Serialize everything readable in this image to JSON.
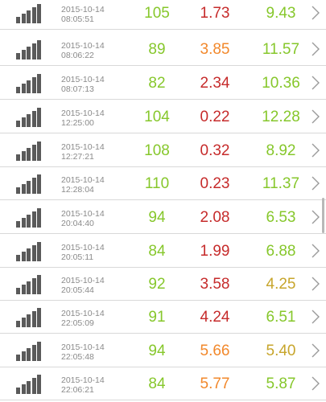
{
  "colors": {
    "green": "#86c72b",
    "red": "#c62b2b",
    "orange": "#f2882b",
    "olive": "#c7a52b",
    "icon": "#5a5a5a",
    "timestamp": "#8a8a8a",
    "divider": "#d9d9d9"
  },
  "icons": {
    "row_leading": "signal-bars-icon",
    "row_trailing": "chevron-right-icon"
  },
  "rows": [
    {
      "date": "2015-10-14",
      "time": "08:05:51",
      "v1": "105",
      "v2": "1.73",
      "v3": "9.43",
      "c1": "green",
      "c2": "red",
      "c3": "green"
    },
    {
      "date": "2015-10-14",
      "time": "08:06:22",
      "v1": "89",
      "v2": "3.85",
      "v3": "11.57",
      "c1": "green",
      "c2": "orange",
      "c3": "green"
    },
    {
      "date": "2015-10-14",
      "time": "08:07:13",
      "v1": "82",
      "v2": "2.34",
      "v3": "10.36",
      "c1": "green",
      "c2": "red",
      "c3": "green"
    },
    {
      "date": "2015-10-14",
      "time": "12:25:00",
      "v1": "104",
      "v2": "0.22",
      "v3": "12.28",
      "c1": "green",
      "c2": "red",
      "c3": "green"
    },
    {
      "date": "2015-10-14",
      "time": "12:27:21",
      "v1": "108",
      "v2": "0.32",
      "v3": "8.92",
      "c1": "green",
      "c2": "red",
      "c3": "green"
    },
    {
      "date": "2015-10-14",
      "time": "12:28:04",
      "v1": "110",
      "v2": "0.23",
      "v3": "11.37",
      "c1": "green",
      "c2": "red",
      "c3": "green"
    },
    {
      "date": "2015-10-14",
      "time": "20:04:40",
      "v1": "94",
      "v2": "2.08",
      "v3": "6.53",
      "c1": "green",
      "c2": "red",
      "c3": "green"
    },
    {
      "date": "2015-10-14",
      "time": "20:05:11",
      "v1": "84",
      "v2": "1.99",
      "v3": "6.88",
      "c1": "green",
      "c2": "red",
      "c3": "green"
    },
    {
      "date": "2015-10-14",
      "time": "20:05:44",
      "v1": "92",
      "v2": "3.58",
      "v3": "4.25",
      "c1": "green",
      "c2": "red",
      "c3": "olive"
    },
    {
      "date": "2015-10-14",
      "time": "22:05:09",
      "v1": "91",
      "v2": "4.24",
      "v3": "6.51",
      "c1": "green",
      "c2": "red",
      "c3": "green"
    },
    {
      "date": "2015-10-14",
      "time": "22:05:48",
      "v1": "94",
      "v2": "5.66",
      "v3": "5.40",
      "c1": "green",
      "c2": "orange",
      "c3": "olive"
    },
    {
      "date": "2015-10-14",
      "time": "22:06:21",
      "v1": "84",
      "v2": "5.77",
      "v3": "5.87",
      "c1": "green",
      "c2": "orange",
      "c3": "green"
    }
  ]
}
